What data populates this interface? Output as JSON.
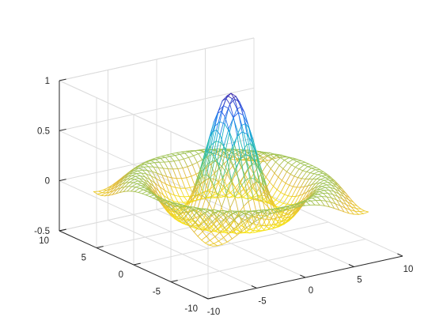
{
  "chart_data": {
    "type": "surface",
    "style": "mesh",
    "function": "sin(r)/r, r = sqrt(x^2 + y^2)",
    "title": "",
    "xlabel": "",
    "ylabel": "",
    "zlabel": "",
    "xlim": [
      -10,
      10
    ],
    "ylim": [
      -10,
      10
    ],
    "zlim": [
      -0.5,
      1
    ],
    "grid_range": [
      -8,
      8
    ],
    "grid_step": 0.5,
    "grid": true,
    "box": "back planes only",
    "colormap": "parula",
    "colormap_stops": [
      "#3e26a8",
      "#2f6bf2",
      "#15a8d6",
      "#2cc0a5",
      "#80c963",
      "#e3b93b",
      "#f9e819"
    ],
    "view": {
      "azimuth_deg": -37.5,
      "elevation_deg": 30
    },
    "x_ticks": [
      {
        "value": -10,
        "label": "-10"
      },
      {
        "value": -5,
        "label": "-5"
      },
      {
        "value": 0,
        "label": "0"
      },
      {
        "value": 5,
        "label": "5"
      },
      {
        "value": 10,
        "label": "10"
      }
    ],
    "y_ticks": [
      {
        "value": -10,
        "label": "-10"
      },
      {
        "value": -5,
        "label": "-5"
      },
      {
        "value": 0,
        "label": "0"
      },
      {
        "value": 5,
        "label": "5"
      },
      {
        "value": 10,
        "label": "10"
      }
    ],
    "z_ticks": [
      {
        "value": -0.5,
        "label": "-0.5"
      },
      {
        "value": 0,
        "label": "0"
      },
      {
        "value": 0.5,
        "label": "0.5"
      },
      {
        "value": 1,
        "label": "1"
      }
    ]
  }
}
